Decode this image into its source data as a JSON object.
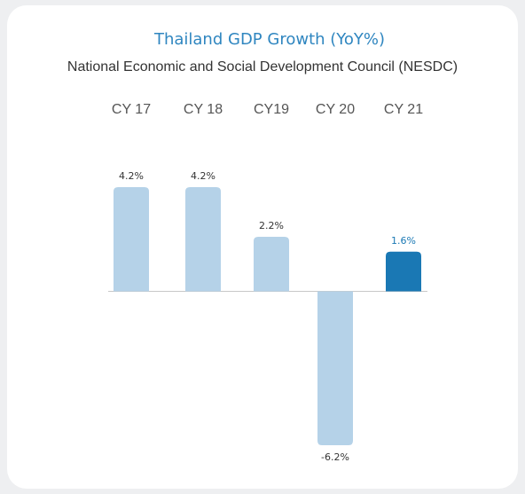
{
  "chart_data": {
    "type": "bar",
    "title": "Thailand GDP Growth (YoY%)",
    "subtitle": "National Economic and Social Development Council (NESDC)",
    "categories": [
      "CY 17",
      "CY 18",
      "CY19",
      "CY 20",
      "CY 21"
    ],
    "values": [
      4.2,
      4.2,
      2.2,
      -6.2,
      1.6
    ],
    "value_labels": [
      "4.2%",
      "4.2%",
      "2.2%",
      "-6.2%",
      "1.6%"
    ],
    "colors": [
      "#b5d2e8",
      "#b5d2e8",
      "#b5d2e8",
      "#b5d2e8",
      "#1a78b4"
    ],
    "label_colors": [
      "#333333",
      "#333333",
      "#333333",
      "#333333",
      "#1a78b4"
    ]
  }
}
